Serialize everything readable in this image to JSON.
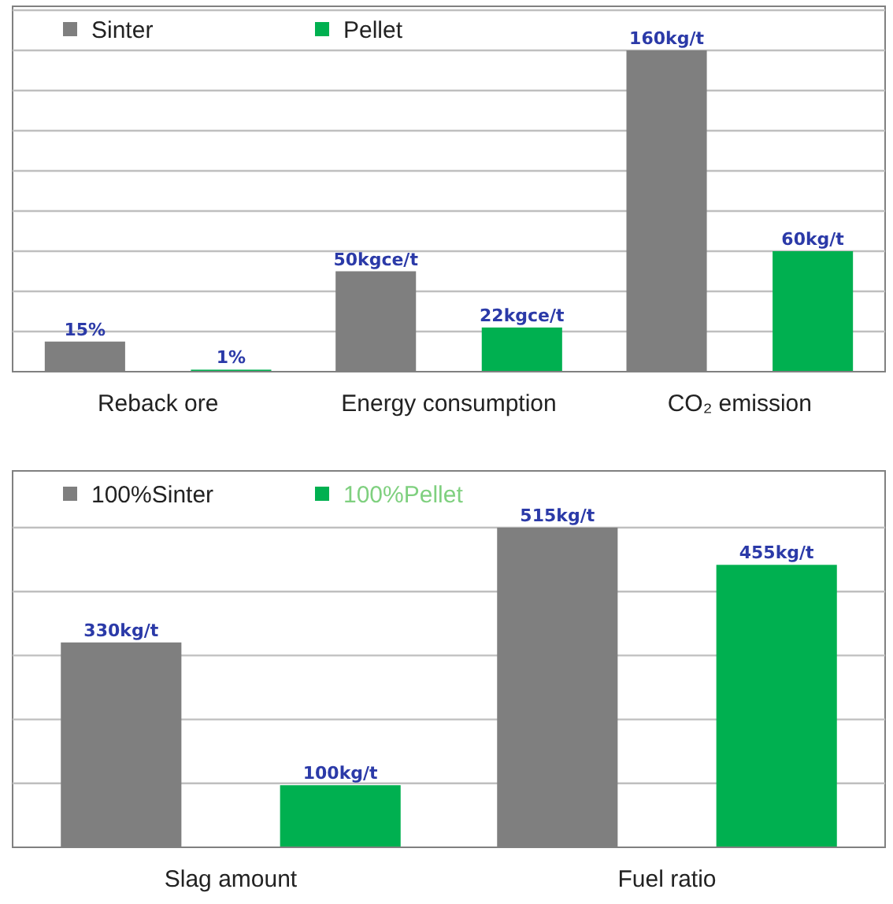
{
  "chart_data": [
    {
      "type": "bar",
      "categories": [
        "Reback ore",
        "Energy consumption",
        "CO₂ emission"
      ],
      "series": [
        {
          "name": "Sinter",
          "color": "#7f7f7f",
          "values": [
            15,
            50,
            160
          ],
          "value_labels": [
            "15%",
            "50kgce/t",
            "160kg/t"
          ]
        },
        {
          "name": "Pellet",
          "color": "#00b050",
          "values": [
            1,
            22,
            60
          ],
          "value_labels": [
            "1%",
            "22kgce/t",
            "60kg/t"
          ]
        }
      ],
      "grid": "y",
      "legend": "top left"
    },
    {
      "type": "bar",
      "categories": [
        "Slag amount",
        "Fuel ratio"
      ],
      "series": [
        {
          "name": "100%Sinter",
          "color": "#7f7f7f",
          "values": [
            330,
            515
          ],
          "value_labels": [
            "330kg/t",
            "515kg/t"
          ]
        },
        {
          "name": "100%Pellet",
          "color": "#00b050",
          "values": [
            100,
            455
          ],
          "value_labels": [
            "100kg/t",
            "455kg/t"
          ]
        }
      ],
      "grid": "y",
      "legend": "top left"
    }
  ]
}
